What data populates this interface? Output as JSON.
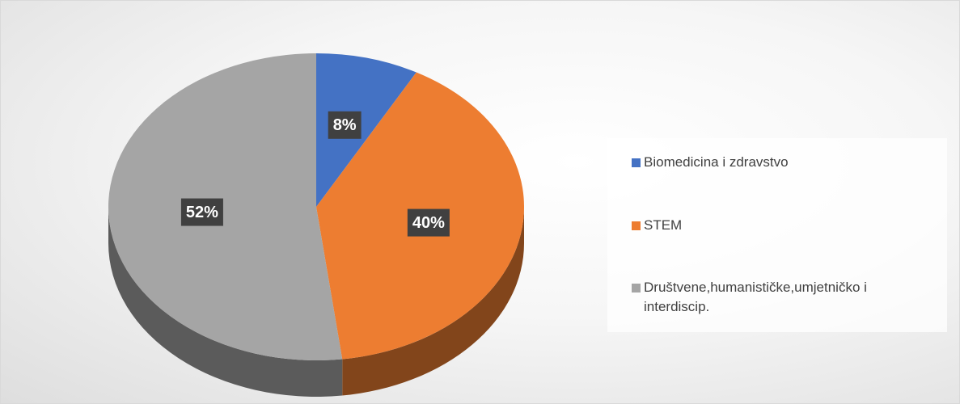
{
  "chart_data": {
    "type": "pie",
    "categories": [
      "Biomedicina i zdravstvo",
      "STEM",
      "Društvene,humanističke,umjetničko i interdiscip."
    ],
    "values": [
      8,
      40,
      52
    ],
    "value_labels": [
      "8%",
      "40%",
      "52%"
    ],
    "colors": [
      "#4472c4",
      "#ed7d31",
      "#a5a5a5"
    ],
    "legend": "right"
  }
}
